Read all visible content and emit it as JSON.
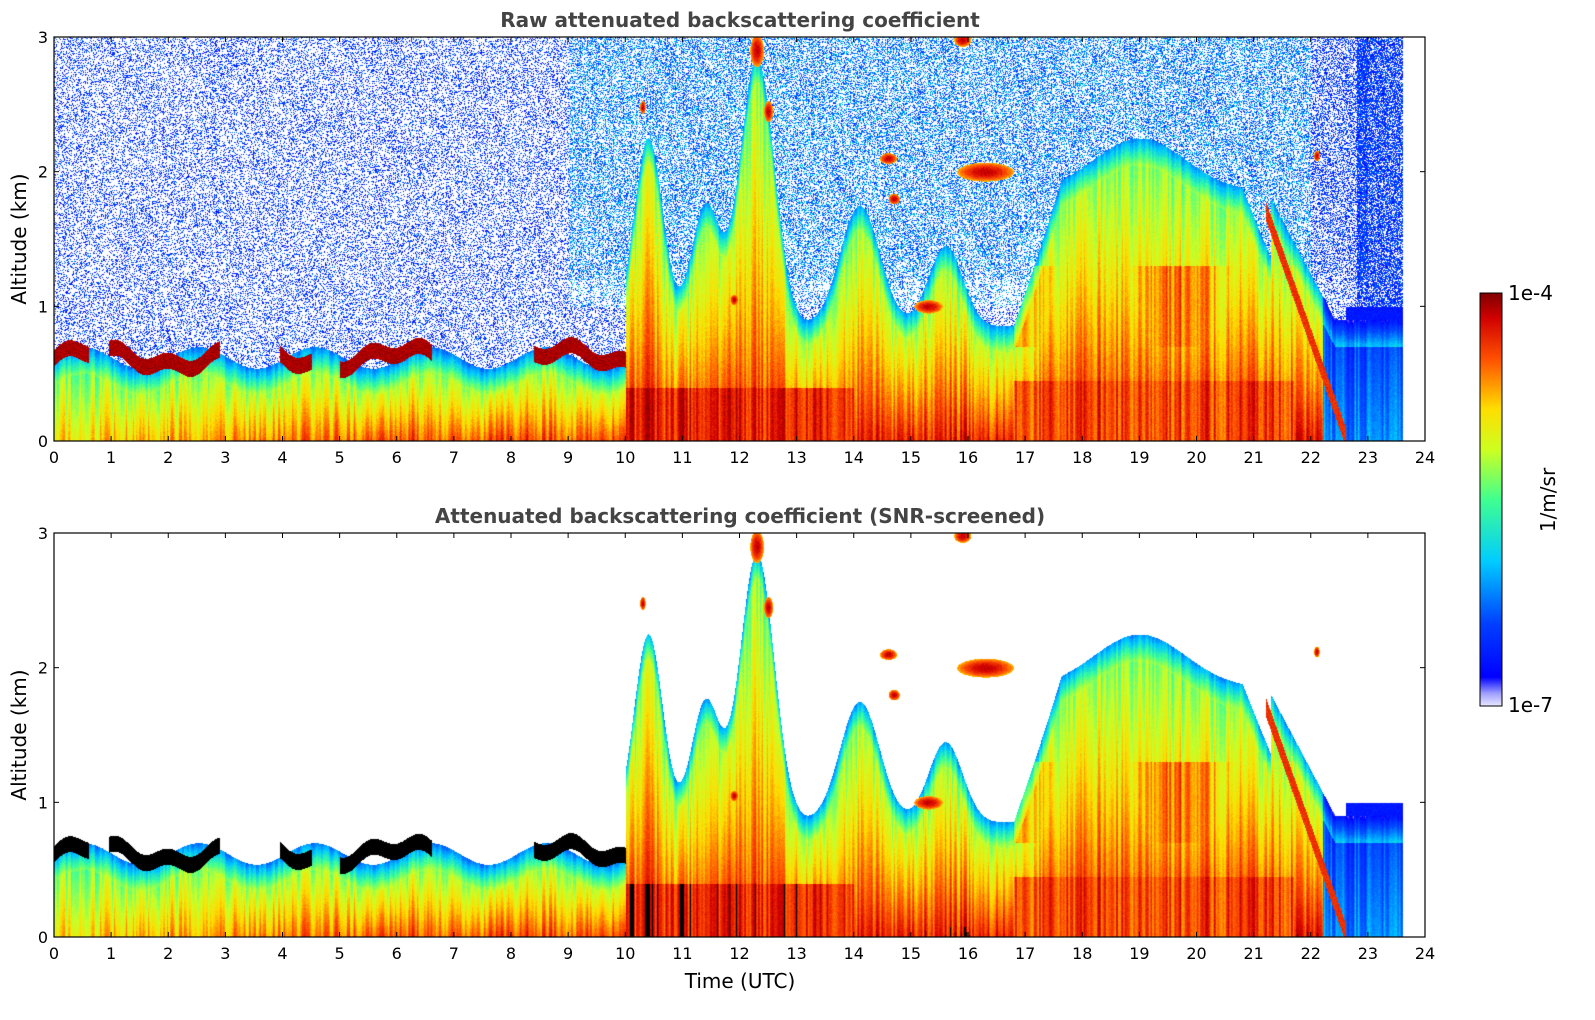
{
  "chart_data": [
    {
      "type": "heatmap",
      "title": "Raw attenuated backscattering coefficient",
      "xlabel": "",
      "ylabel": "Altitude (km)",
      "xlim": [
        0,
        24
      ],
      "ylim": [
        0,
        3
      ],
      "xticks": [
        "0",
        "1",
        "2",
        "3",
        "4",
        "5",
        "6",
        "7",
        "8",
        "9",
        "10",
        "11",
        "12",
        "13",
        "14",
        "15",
        "16",
        "17",
        "18",
        "19",
        "20",
        "21",
        "22",
        "23",
        "24"
      ],
      "yticks": [
        "0",
        "1",
        "2",
        "3"
      ],
      "data_end_hour": 23.6,
      "noise_floor": "high",
      "layers": [
        {
          "name": "boundary-layer",
          "description": "aerosol layer below ~0.7 km"
        },
        {
          "name": "cloud-top-layer",
          "description": "strong return at 0.6-0.75 km, 0-10 UTC"
        },
        {
          "name": "convective-plumes",
          "description": "aerosol up to ~2 km, 10-22 UTC"
        },
        {
          "name": "high-clouds",
          "description": "isolated strong returns at 2-3 km"
        }
      ]
    },
    {
      "type": "heatmap",
      "title": "Attenuated backscattering coefficient (SNR-screened)",
      "xlabel": "Time (UTC)",
      "ylabel": "Altitude (km)",
      "xlim": [
        0,
        24
      ],
      "ylim": [
        0,
        3
      ],
      "xticks": [
        "0",
        "1",
        "2",
        "3",
        "4",
        "5",
        "6",
        "7",
        "8",
        "9",
        "10",
        "11",
        "12",
        "13",
        "14",
        "15",
        "16",
        "17",
        "18",
        "19",
        "20",
        "21",
        "22",
        "23",
        "24"
      ],
      "yticks": [
        "0",
        "1",
        "2",
        "3"
      ],
      "data_end_hour": 23.6,
      "noise_floor": "screened",
      "saturated_color": "#000000"
    }
  ],
  "colorbar": {
    "label": "1/m/sr",
    "max_label": "1e-4",
    "min_label": "1e-7",
    "scale": "log",
    "colormap": "jet",
    "low_color": "#e8e8ff"
  }
}
